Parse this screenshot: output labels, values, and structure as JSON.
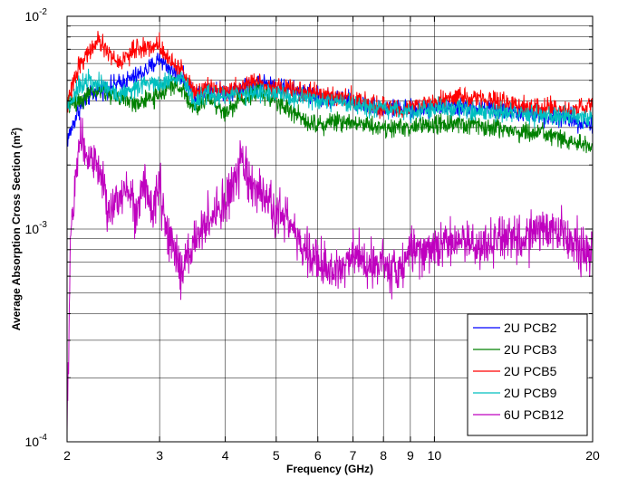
{
  "chart_data": {
    "type": "line",
    "xlabel": "Frequency (GHz)",
    "ylabel_main": "Average Absorption Cross Section (m",
    "ylabel_sup": "2",
    "ylabel_close": ")",
    "x_scale": "log",
    "y_scale": "log",
    "xlim": [
      2,
      20
    ],
    "ylim": [
      0.0001,
      0.01
    ],
    "grid": true,
    "legend_position": "bottom-right",
    "x_tick_labels": [
      {
        "value": 2,
        "label": "2"
      },
      {
        "value": 3,
        "label": "3"
      },
      {
        "value": 4,
        "label": "4"
      },
      {
        "value": 5,
        "label": "5"
      },
      {
        "value": 6,
        "label": "6"
      },
      {
        "value": 7,
        "label": "7"
      },
      {
        "value": 8,
        "label": "8"
      },
      {
        "value": 9,
        "label": "9"
      },
      {
        "value": 10,
        "label": "10"
      },
      {
        "value": 20,
        "label": "20"
      }
    ],
    "y_tick_labels": [
      {
        "value": 0.01,
        "base": "10",
        "exp": "-2"
      },
      {
        "value": 0.001,
        "base": "10",
        "exp": "-3"
      },
      {
        "value": 0.0001,
        "base": "10",
        "exp": "-4"
      }
    ],
    "series": [
      {
        "name": "2U PCB2",
        "color": "#0000ff",
        "x": [
          2.0,
          2.1,
          2.2,
          2.3,
          2.5,
          2.7,
          2.9,
          3.0,
          3.1,
          3.3,
          3.5,
          3.7,
          4.0,
          4.3,
          4.6,
          5.0,
          5.5,
          6.0,
          6.5,
          7.0,
          8.0,
          9.0,
          10.0,
          12.0,
          14.0,
          16.0,
          18.0,
          20.0
        ],
        "y": [
          0.0026,
          0.0036,
          0.0042,
          0.0045,
          0.0048,
          0.0052,
          0.0058,
          0.0064,
          0.0058,
          0.0052,
          0.0043,
          0.0046,
          0.0044,
          0.0046,
          0.0049,
          0.0047,
          0.0044,
          0.0042,
          0.0041,
          0.004,
          0.0037,
          0.0036,
          0.0038,
          0.0037,
          0.0036,
          0.0034,
          0.0033,
          0.0031
        ]
      },
      {
        "name": "2U PCB3",
        "color": "#008000",
        "x": [
          2.0,
          2.1,
          2.2,
          2.3,
          2.5,
          2.7,
          2.9,
          3.0,
          3.1,
          3.3,
          3.5,
          3.7,
          4.0,
          4.3,
          4.6,
          5.0,
          5.5,
          6.0,
          6.5,
          7.0,
          8.0,
          9.0,
          10.0,
          12.0,
          14.0,
          16.0,
          18.0,
          20.0
        ],
        "y": [
          0.0038,
          0.004,
          0.0043,
          0.0045,
          0.0042,
          0.0039,
          0.0041,
          0.0042,
          0.0048,
          0.0046,
          0.0036,
          0.0042,
          0.0035,
          0.0041,
          0.0045,
          0.004,
          0.0034,
          0.0031,
          0.0032,
          0.0032,
          0.003,
          0.003,
          0.0031,
          0.0031,
          0.0029,
          0.0028,
          0.0026,
          0.0024
        ]
      },
      {
        "name": "2U PCB5",
        "color": "#ff0000",
        "x": [
          2.0,
          2.1,
          2.2,
          2.3,
          2.5,
          2.7,
          2.9,
          3.0,
          3.1,
          3.3,
          3.5,
          3.7,
          4.0,
          4.3,
          4.6,
          5.0,
          5.5,
          6.0,
          6.5,
          7.0,
          8.0,
          9.0,
          10.0,
          12.0,
          14.0,
          16.0,
          18.0,
          20.0
        ],
        "y": [
          0.0038,
          0.0058,
          0.0068,
          0.0076,
          0.006,
          0.007,
          0.0072,
          0.0074,
          0.0064,
          0.0056,
          0.0044,
          0.0048,
          0.0044,
          0.0047,
          0.005,
          0.0046,
          0.0045,
          0.0043,
          0.0042,
          0.0041,
          0.0037,
          0.0037,
          0.004,
          0.0042,
          0.0038,
          0.0037,
          0.0036,
          0.0038
        ]
      },
      {
        "name": "2U PCB9",
        "color": "#00bfbf",
        "x": [
          2.0,
          2.1,
          2.2,
          2.3,
          2.5,
          2.7,
          2.9,
          3.0,
          3.1,
          3.3,
          3.5,
          3.7,
          4.0,
          4.3,
          4.6,
          5.0,
          5.5,
          6.0,
          6.5,
          7.0,
          8.0,
          9.0,
          10.0,
          12.0,
          14.0,
          16.0,
          18.0,
          20.0
        ],
        "y": [
          0.0037,
          0.0046,
          0.0052,
          0.0048,
          0.0043,
          0.0046,
          0.005,
          0.0048,
          0.005,
          0.0052,
          0.0039,
          0.0043,
          0.0042,
          0.0043,
          0.0044,
          0.0043,
          0.0041,
          0.004,
          0.0039,
          0.0038,
          0.0036,
          0.0036,
          0.0037,
          0.0036,
          0.0035,
          0.0034,
          0.0034,
          0.0033
        ]
      },
      {
        "name": "6U PCB12",
        "color": "#bf00bf",
        "x": [
          2.0,
          2.03,
          2.08,
          2.12,
          2.2,
          2.3,
          2.4,
          2.5,
          2.6,
          2.7,
          2.8,
          2.9,
          3.0,
          3.1,
          3.2,
          3.3,
          3.5,
          3.7,
          3.9,
          4.1,
          4.3,
          4.5,
          4.8,
          5.0,
          5.3,
          5.6,
          6.0,
          6.5,
          7.0,
          7.5,
          8.0,
          8.5,
          9.0,
          10.0,
          11.0,
          12.0,
          13.0,
          14.0,
          15.0,
          16.0,
          17.0,
          18.0,
          19.0,
          20.0
        ],
        "y": [
          0.0001,
          0.0009,
          0.0018,
          0.0027,
          0.0022,
          0.0019,
          0.0012,
          0.0013,
          0.0017,
          0.0012,
          0.0016,
          0.0012,
          0.0016,
          0.0009,
          0.0008,
          0.0006,
          0.0009,
          0.0011,
          0.0012,
          0.0015,
          0.002,
          0.0016,
          0.0013,
          0.0012,
          0.0011,
          0.0008,
          0.0007,
          0.0006,
          0.0008,
          0.0007,
          0.0007,
          0.0006,
          0.0008,
          0.0008,
          0.0009,
          0.0008,
          0.0009,
          0.0009,
          0.0009,
          0.001,
          0.001,
          0.0009,
          0.0008,
          0.0008
        ]
      }
    ]
  }
}
